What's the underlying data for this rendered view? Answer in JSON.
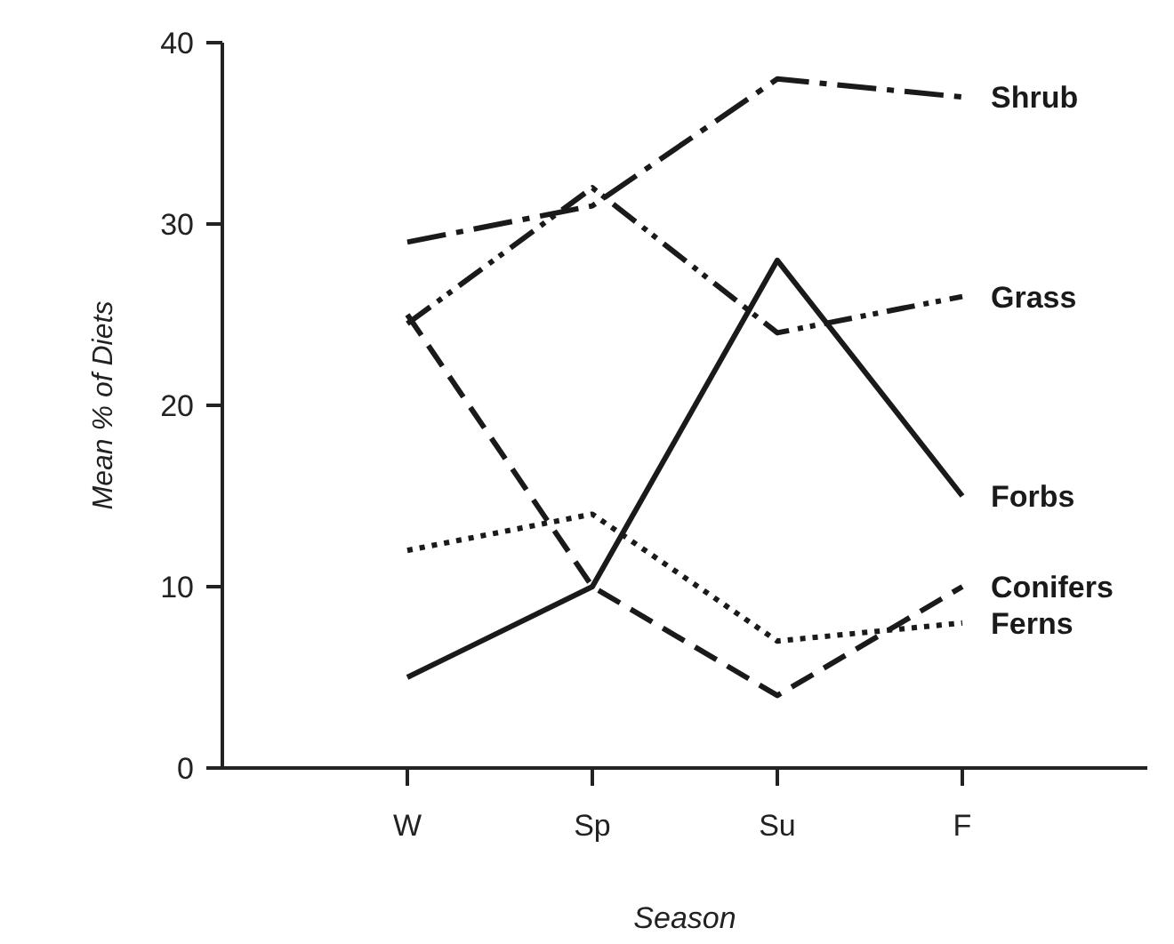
{
  "chart_data": {
    "type": "line",
    "xlabel": "Season",
    "ylabel": "Mean % of Diets",
    "categories": [
      "W",
      "Sp",
      "Su",
      "F"
    ],
    "ylim": [
      0,
      40
    ],
    "yticks": [
      0,
      10,
      20,
      30,
      40
    ],
    "grid": false,
    "marker": "none",
    "series": [
      {
        "name": "Shrub",
        "color": "#1a1a1a",
        "line_style": "dashdot",
        "values": [
          29,
          31,
          38,
          37
        ]
      },
      {
        "name": "Grass",
        "color": "#1a1a1a",
        "line_style": "dashdotdot",
        "values": [
          24.5,
          32,
          24,
          26
        ]
      },
      {
        "name": "Forbs",
        "color": "#1a1a1a",
        "line_style": "solid",
        "values": [
          5,
          10,
          28,
          15
        ]
      },
      {
        "name": "Conifers",
        "color": "#1a1a1a",
        "line_style": "dashed",
        "values": [
          25,
          10,
          4,
          10
        ]
      },
      {
        "name": "Ferns",
        "color": "#1a1a1a",
        "line_style": "dotted",
        "values": [
          12,
          14,
          7,
          8
        ]
      }
    ]
  }
}
